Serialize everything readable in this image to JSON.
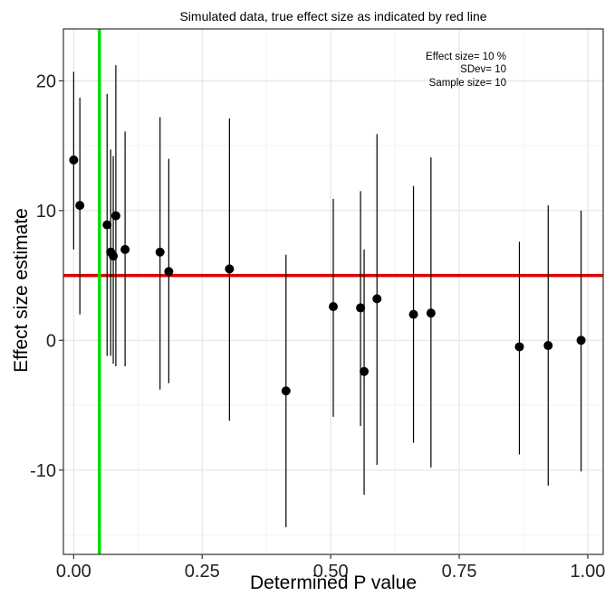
{
  "chart_data": {
    "type": "scatter",
    "title": "Simulated data, true effect size as indicated by red line",
    "xlabel": "Determined P value",
    "ylabel": "Effect size estimate",
    "xlim": [
      -0.02,
      1.03
    ],
    "ylim": [
      -16.5,
      24
    ],
    "x_ticks": [
      0.0,
      0.25,
      0.5,
      0.75,
      1.0
    ],
    "x_tick_labels": [
      "0.00",
      "0.25",
      "0.50",
      "0.75",
      "1.00"
    ],
    "y_ticks": [
      -10,
      0,
      10,
      20
    ],
    "y_tick_labels": [
      "-10",
      "0",
      "10",
      "20"
    ],
    "grid": true,
    "annotations": [
      "Effect size= 10 %",
      "SDev= 10",
      "Sample size= 10"
    ],
    "reference_lines": [
      {
        "orientation": "horizontal",
        "value": 5,
        "color": "#e00000"
      },
      {
        "orientation": "vertical",
        "value": 0.05,
        "color": "#00dd00"
      }
    ],
    "points": [
      {
        "x": 0.0,
        "y": 13.9,
        "lo": 7.0,
        "hi": 20.7
      },
      {
        "x": 0.012,
        "y": 10.4,
        "lo": 2.0,
        "hi": 18.7
      },
      {
        "x": 0.065,
        "y": 8.9,
        "lo": -1.2,
        "hi": 19.0
      },
      {
        "x": 0.072,
        "y": 6.8,
        "lo": -1.2,
        "hi": 14.7
      },
      {
        "x": 0.077,
        "y": 6.5,
        "lo": -1.8,
        "hi": 14.2
      },
      {
        "x": 0.082,
        "y": 9.6,
        "lo": -2.0,
        "hi": 21.2
      },
      {
        "x": 0.1,
        "y": 7.0,
        "lo": -2.0,
        "hi": 16.1
      },
      {
        "x": 0.168,
        "y": 6.8,
        "lo": -3.8,
        "hi": 17.2
      },
      {
        "x": 0.185,
        "y": 5.3,
        "lo": -3.3,
        "hi": 14.0
      },
      {
        "x": 0.303,
        "y": 5.5,
        "lo": -6.2,
        "hi": 17.1
      },
      {
        "x": 0.413,
        "y": -3.9,
        "lo": -14.4,
        "hi": 6.6
      },
      {
        "x": 0.505,
        "y": 2.6,
        "lo": -5.9,
        "hi": 10.9
      },
      {
        "x": 0.558,
        "y": 2.5,
        "lo": -6.6,
        "hi": 11.5
      },
      {
        "x": 0.565,
        "y": -2.4,
        "lo": -11.9,
        "hi": 7.0
      },
      {
        "x": 0.59,
        "y": 3.2,
        "lo": -9.6,
        "hi": 15.9
      },
      {
        "x": 0.661,
        "y": 2.0,
        "lo": -7.9,
        "hi": 11.9
      },
      {
        "x": 0.695,
        "y": 2.1,
        "lo": -9.8,
        "hi": 14.1
      },
      {
        "x": 0.867,
        "y": -0.5,
        "lo": -8.8,
        "hi": 7.6
      },
      {
        "x": 0.923,
        "y": -0.4,
        "lo": -11.2,
        "hi": 10.4
      },
      {
        "x": 0.987,
        "y": 0.0,
        "lo": -10.1,
        "hi": 10.0
      }
    ]
  },
  "colors": {
    "background": "#ffffff",
    "panel_border": "#333333",
    "grid_major": "#e6e6e6",
    "grid_minor": "#f3f3f3",
    "points": "#000000",
    "hline": "#e00000",
    "vline": "#00dd00"
  }
}
